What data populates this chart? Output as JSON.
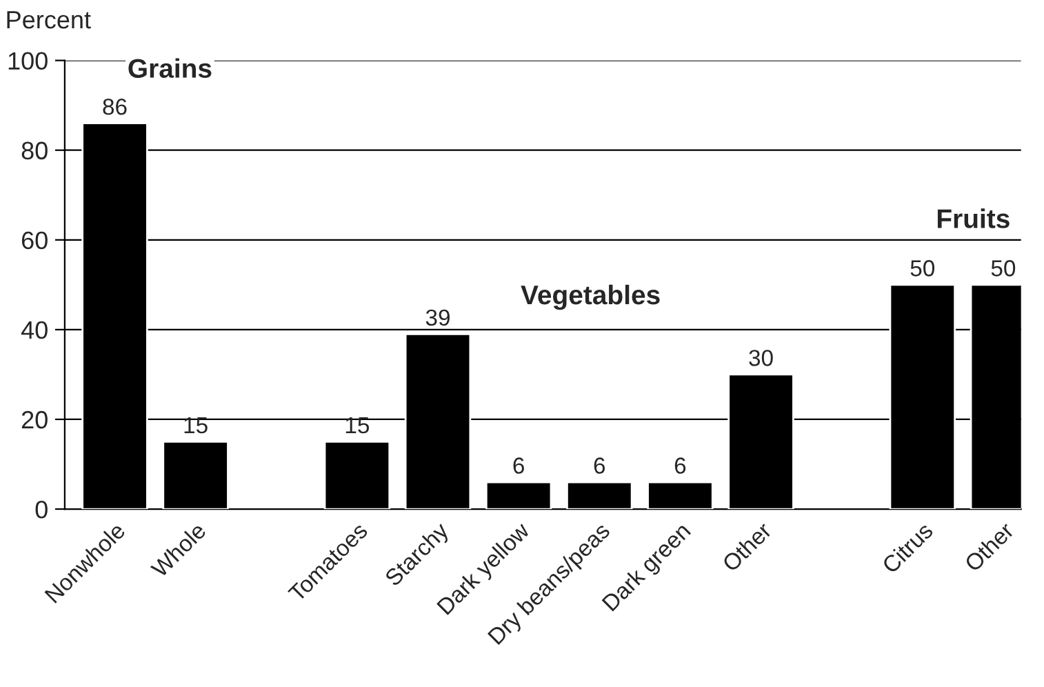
{
  "chart_data": {
    "type": "bar",
    "ylabel": "Percent",
    "categories": [
      "Nonwhole",
      "Whole",
      null,
      "Tomatoes",
      "Starchy",
      "Dark yellow",
      "Dry beans/peas",
      "Dark green",
      "Other",
      null,
      "Citrus",
      "Other"
    ],
    "values": [
      86,
      15,
      null,
      15,
      39,
      6,
      6,
      6,
      30,
      null,
      50,
      50
    ],
    "color": "#000000",
    "ylim": [
      0,
      100
    ],
    "yticks": [
      0,
      20,
      40,
      60,
      80,
      100
    ],
    "grid": "y",
    "data_labels": true,
    "annotations": [
      "Grains",
      "Vegetables",
      "Fruits"
    ]
  }
}
